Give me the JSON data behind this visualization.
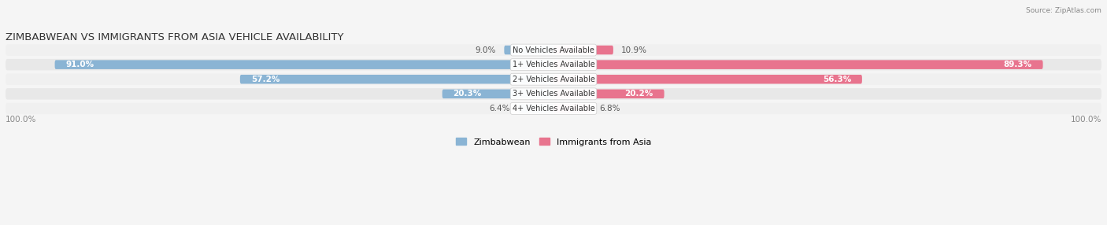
{
  "title": "ZIMBABWEAN VS IMMIGRANTS FROM ASIA VEHICLE AVAILABILITY",
  "source": "Source: ZipAtlas.com",
  "categories": [
    "No Vehicles Available",
    "1+ Vehicles Available",
    "2+ Vehicles Available",
    "3+ Vehicles Available",
    "4+ Vehicles Available"
  ],
  "zimbabwean": [
    9.0,
    91.0,
    57.2,
    20.3,
    6.4
  ],
  "asia": [
    10.9,
    89.3,
    56.3,
    20.2,
    6.8
  ],
  "color_zimbabwean": "#8ab4d4",
  "color_asia": "#e8748e",
  "color_zimbabwean_light": "#b8d4e8",
  "color_asia_light": "#f0a8b8",
  "bg_row_odd": "#f0f0f0",
  "bg_row_even": "#e8e8e8",
  "bg_figure": "#f5f5f5",
  "label_color": "#555555",
  "title_color": "#333333",
  "axis_label_color": "#888888",
  "max_val": 100.0,
  "figsize": [
    14.06,
    2.86
  ],
  "dpi": 100,
  "bar_height": 0.62,
  "font_size_title": 9.5,
  "font_size_labels": 7.5,
  "font_size_category": 7,
  "font_size_axis": 7.5,
  "font_size_legend": 8
}
